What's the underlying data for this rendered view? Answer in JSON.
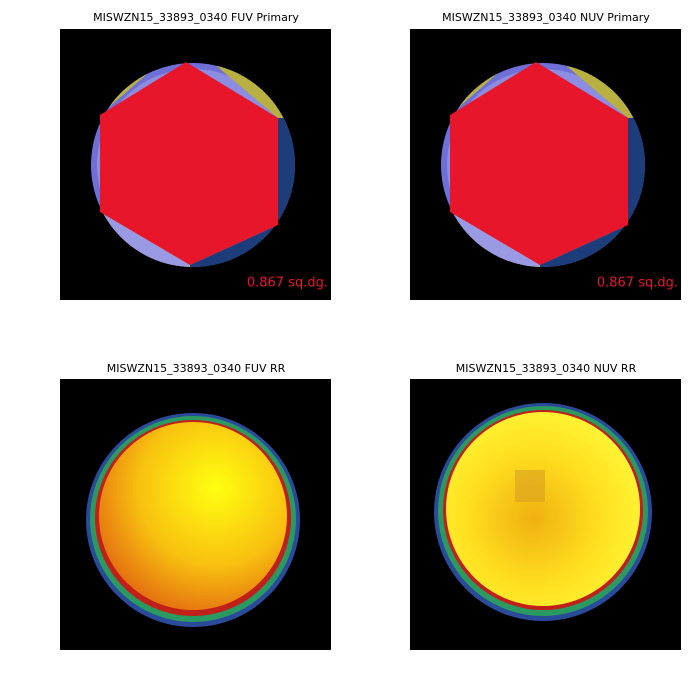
{
  "panels": [
    {
      "title": "MISWZN15_33893_0340 FUV Primary",
      "label": "0.867 sq.dg."
    },
    {
      "title": "MISWZN15_33893_0340 NUV Primary",
      "label": "0.867 sq.dg."
    },
    {
      "title": "MISWZN15_33893_0340 FUV RR"
    },
    {
      "title": "MISWZN15_33893_0340 NUV RR"
    }
  ]
}
